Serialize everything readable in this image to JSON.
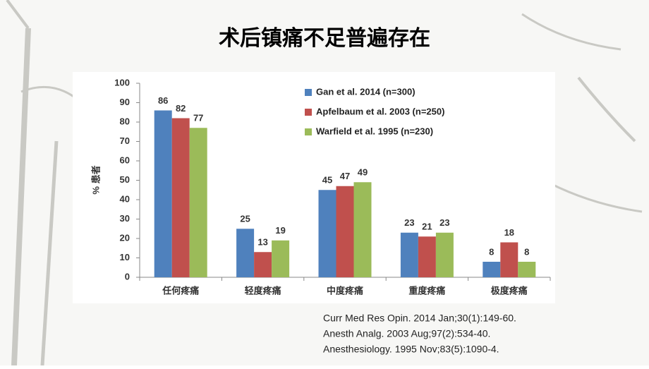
{
  "slide_title": "术后镇痛不足普遍存在",
  "references": [
    "Curr Med Res Opin. 2014 Jan;30(1):149-60.",
    "Anesth Analg. 2003 Aug;97(2):534-40.",
    "Anesthesiology. 1995 Nov;83(5):1090-4."
  ],
  "chart_data": {
    "type": "bar",
    "y_label": "% 患者",
    "categories": [
      "任何疼痛",
      "轻度疼痛",
      "中度疼痛",
      "重度疼痛",
      "极度疼痛"
    ],
    "series": [
      {
        "name": "Gan et al. 2014 (n=300)",
        "color": "#4f81bd",
        "values": [
          86,
          25,
          45,
          23,
          8
        ]
      },
      {
        "name": "Apfelbaum et al. 2003 (n=250)",
        "color": "#c0504d",
        "values": [
          82,
          13,
          47,
          21,
          18
        ]
      },
      {
        "name": "Warfield et al. 1995 (n=230)",
        "color": "#9bbb59",
        "values": [
          77,
          19,
          49,
          23,
          8
        ]
      }
    ],
    "ylim": [
      0,
      100
    ],
    "yticks": [
      0,
      10,
      20,
      30,
      40,
      50,
      60,
      70,
      80,
      90,
      100
    ],
    "grid": false,
    "legend": "top-right"
  }
}
